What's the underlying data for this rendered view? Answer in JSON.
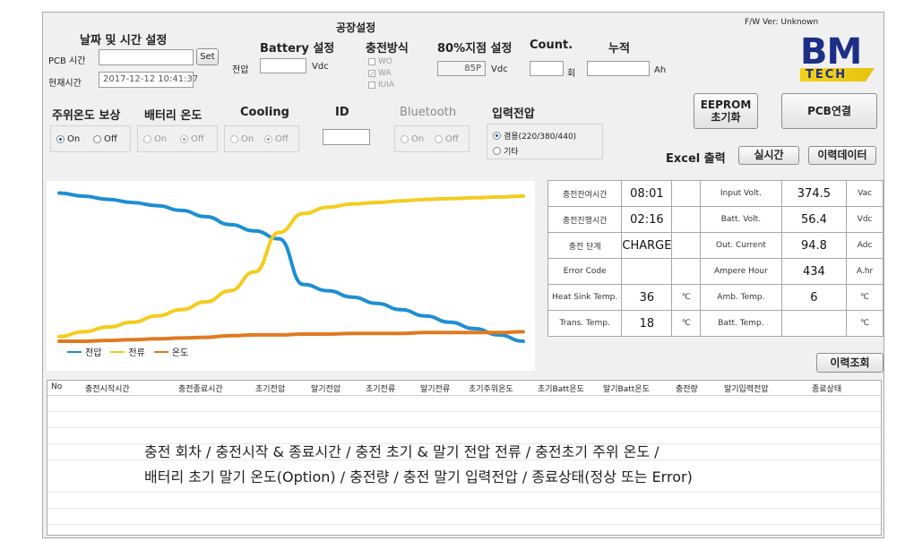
{
  "window": {
    "title": "공장설정",
    "fw_label": "F/W Ver:",
    "fw_value": "Unknown"
  },
  "logo": {
    "line1": "BM",
    "line2": "TECH"
  },
  "datetime": {
    "header": "날짜 및 시간 설정",
    "pcb_label": "PCB 시간",
    "pcb_value": "",
    "set_label": "Set",
    "current_label": "현재시간",
    "current_value": "2017-12-12 10:41:37"
  },
  "battery": {
    "header": "Battery 설정",
    "voltage_label": "전압",
    "voltage_value": "",
    "unit": "Vdc"
  },
  "charge_method": {
    "header": "충전방식",
    "options": [
      {
        "label": "WO",
        "checked": false
      },
      {
        "label": "WA",
        "checked": true
      },
      {
        "label": "IUIA",
        "checked": false
      }
    ]
  },
  "point80": {
    "header": "80%지점 설정",
    "value": "85P",
    "unit": "Vdc"
  },
  "count": {
    "header": "Count.",
    "value": "",
    "unit": "회"
  },
  "cumulative": {
    "header": "누적",
    "value": "",
    "unit": "Ah"
  },
  "buttons": {
    "eeprom_line1": "EEPROM",
    "eeprom_line2": "초기화",
    "pcb_connect": "PCB연결",
    "realtime": "실시간",
    "history_data": "이력데이터",
    "history_query": "이력조회"
  },
  "excel_label": "Excel 출력",
  "ambient_comp": {
    "header": "주위온도 보상",
    "on": "On",
    "off": "Off",
    "selected": "On"
  },
  "battery_temp": {
    "header": "배터리 온도",
    "on": "On",
    "off": "Off",
    "selected": "Off"
  },
  "cooling": {
    "header": "Cooling",
    "on": "On",
    "off": "Off",
    "selected": "Off"
  },
  "id_field": {
    "header": "ID",
    "value": ""
  },
  "bluetooth": {
    "header": "Bluetooth",
    "on": "On",
    "off": "Off",
    "selected": "none"
  },
  "input_voltage": {
    "header": "입력전압",
    "options": [
      "겸용(220/380/440)",
      "기타"
    ],
    "selected": "겸용(220/380/440)"
  },
  "chart_data": {
    "type": "line",
    "series": [
      {
        "name": "전압",
        "color": "#1e8fd0",
        "values": [
          98,
          96,
          94,
          92,
          90,
          87,
          83,
          78,
          74,
          69,
          40,
          36,
          32,
          28,
          24,
          20,
          16,
          12,
          8,
          4
        ]
      },
      {
        "name": "전류",
        "color": "#f4cc1e",
        "values": [
          7,
          10,
          13,
          16,
          20,
          24,
          29,
          36,
          48,
          73,
          85,
          89,
          91,
          92,
          93,
          94,
          94.5,
          95,
          95.5,
          96
        ]
      },
      {
        "name": "온도",
        "color": "#e07a20",
        "values": [
          4,
          4,
          4.5,
          5,
          5.5,
          6,
          6.5,
          7.5,
          8,
          8,
          8.5,
          8.5,
          9,
          9,
          9,
          9.5,
          9.5,
          9.5,
          9.5,
          10
        ]
      }
    ],
    "ylim": [
      0,
      100
    ],
    "grid": false,
    "legend_position": "bottom-left"
  },
  "status": {
    "rows": [
      {
        "l1": "충전잔여시간",
        "v1": "08:01",
        "u1": "",
        "l2": "Input Volt.",
        "v2": "374.5",
        "u2": "Vac"
      },
      {
        "l1": "충전진행시간",
        "v1": "02:16",
        "u1": "",
        "l2": "Batt. Volt.",
        "v2": "56.4",
        "u2": "Vdc"
      },
      {
        "l1": "충전 단계",
        "v1": "CHARGE",
        "u1": "",
        "l2": "Out. Current",
        "v2": "94.8",
        "u2": "Adc"
      },
      {
        "l1": "Error Code",
        "v1": "",
        "u1": "",
        "l2": "Ampere Hour",
        "v2": "434",
        "u2": "A.hr"
      },
      {
        "l1": "Heat Sink Temp.",
        "v1": "36",
        "u1": "℃",
        "l2": "Amb. Temp.",
        "v2": "6",
        "u2": "℃"
      },
      {
        "l1": "Trans. Temp.",
        "v1": "18",
        "u1": "℃",
        "l2": "Batt. Temp.",
        "v2": "",
        "u2": "℃"
      }
    ]
  },
  "history": {
    "columns": [
      "No",
      "충전시작시간",
      "충전종료시간",
      "초기전압",
      "말기전압",
      "초기전류",
      "말기전류",
      "초기주위온도",
      "초기Batt온도",
      "말기Batt온도",
      "충전량",
      "말기입력전압",
      "종료상태"
    ],
    "notes": [
      "충전 회차 / 충전시작 & 종료시간 / 충전 초기 & 말기 전압 전류 / 충전초기 주위 온도 /",
      "배터리 초기 말기 온도(Option) / 충전량 / 충전 말기 입력전압 / 종료상태(정상 또는 Error)"
    ]
  }
}
